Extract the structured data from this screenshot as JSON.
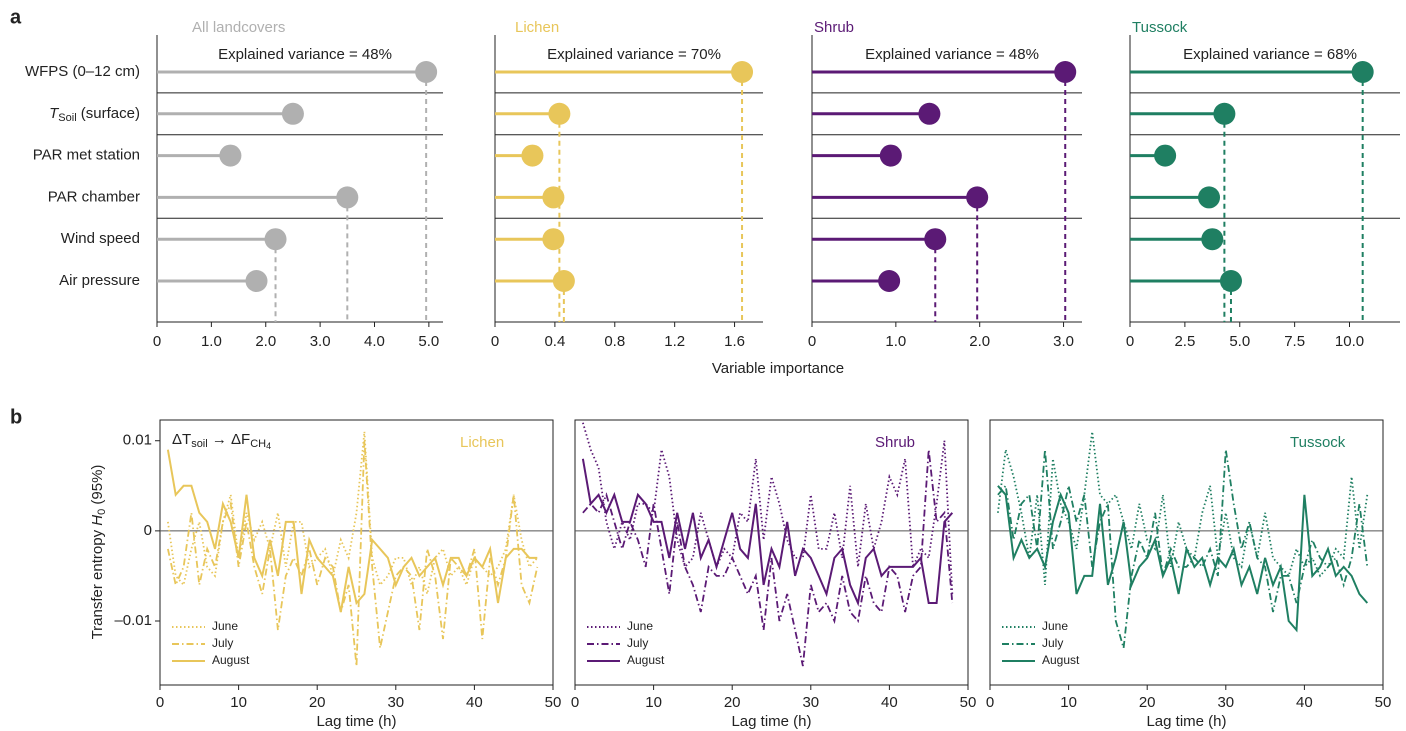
{
  "panel_labels": [
    "a",
    "b"
  ],
  "shared_xlabel": "Variable importance",
  "chart_data": [
    {
      "type": "lollipop",
      "title": "All landcovers",
      "annotation": "Explained variance = 48%",
      "color": "#b0b0b0",
      "categories": [
        "WFPS (0–12 cm)",
        {
          "text": "T",
          "sub": "Soil",
          "suffix": " (surface)"
        },
        "PAR met station",
        "PAR chamber",
        "Wind speed",
        "Air pressure"
      ],
      "values": [
        4.95,
        2.5,
        1.35,
        3.5,
        2.18,
        1.83
      ],
      "dashed": [
        true,
        false,
        false,
        true,
        true,
        false
      ],
      "group_breaks": [
        0,
        1,
        3
      ],
      "xlim": [
        0,
        5.26
      ],
      "xticks": [
        0,
        {
          "value": 1,
          "label": "1.0"
        },
        {
          "value": 2,
          "label": "2.0"
        },
        {
          "value": 3,
          "label": "3.0"
        },
        {
          "value": 4,
          "label": "4.0"
        },
        {
          "value": 5,
          "label": "5.0"
        }
      ]
    },
    {
      "type": "lollipop",
      "title": "Lichen",
      "annotation": "Explained variance = 70%",
      "color": "#e8c65a",
      "values": [
        1.65,
        0.43,
        0.25,
        0.39,
        0.39,
        0.46
      ],
      "dashed": [
        true,
        true,
        false,
        false,
        false,
        true
      ],
      "group_breaks": [
        0,
        1,
        3
      ],
      "xlim": [
        0,
        1.79
      ],
      "xticks": [
        0,
        0.4,
        0.8,
        1.2,
        1.6
      ]
    },
    {
      "type": "lollipop",
      "title": "Shrub",
      "annotation": "Explained variance = 48%",
      "color": "#5b1a75",
      "values": [
        3.02,
        1.4,
        0.94,
        1.97,
        1.47,
        0.92
      ],
      "dashed": [
        true,
        false,
        false,
        true,
        true,
        false
      ],
      "group_breaks": [
        0,
        1,
        3
      ],
      "xlim": [
        0,
        3.22
      ],
      "xticks": [
        0,
        {
          "value": 1,
          "label": "1.0"
        },
        {
          "value": 2,
          "label": "2.0"
        },
        {
          "value": 3,
          "label": "3.0"
        }
      ]
    },
    {
      "type": "lollipop",
      "title": "Tussock",
      "annotation": "Explained variance = 68%",
      "color": "#1f7f62",
      "values": [
        10.6,
        4.3,
        1.6,
        3.6,
        3.75,
        4.6
      ],
      "dashed": [
        true,
        true,
        false,
        false,
        false,
        true
      ],
      "group_breaks": [
        0,
        1,
        3
      ],
      "xlim": [
        0,
        12.3
      ],
      "xticks": [
        0,
        2.5,
        {
          "value": 5,
          "label": "5.0"
        },
        7.5,
        {
          "value": 10,
          "label": "10.0"
        }
      ]
    },
    {
      "type": "line",
      "title": "Lichen",
      "color": "#e8c65a",
      "xlabel": "Lag time (h)",
      "ylabel": {
        "text": "Transfer entropy ",
        "italic": "H",
        "sub": "0",
        "suffix": " (95%)"
      },
      "annotation": {
        "text": "ΔT",
        "sub": "soil",
        "mid": " → ΔF",
        "sub2": "CH",
        "sub3": "4"
      },
      "xlim": [
        0,
        50
      ],
      "xticks": [
        0,
        10,
        20,
        30,
        40,
        50
      ],
      "ylim": [
        -0.0171,
        0.0123
      ],
      "yticks": [
        {
          "value": -0.01,
          "label": "–0.01"
        },
        0,
        0.01
      ],
      "hline": 0,
      "x": [
        1,
        2,
        3,
        4,
        5,
        6,
        7,
        8,
        9,
        10,
        11,
        12,
        13,
        14,
        15,
        16,
        17,
        18,
        19,
        20,
        21,
        22,
        23,
        24,
        25,
        26,
        27,
        28,
        29,
        30,
        31,
        32,
        33,
        34,
        35,
        36,
        37,
        38,
        39,
        40,
        41,
        42,
        43,
        44,
        45,
        46,
        47,
        48
      ],
      "series": [
        {
          "name": "June",
          "style": "dotted",
          "values": [
            0.001,
            -0.005,
            -0.006,
            -0.002,
            0.001,
            -0.004,
            -0.005,
            0.001,
            0.004,
            -0.003,
            0.002,
            -0.001,
            0.001,
            -0.002,
            0.002,
            -0.004,
            0.001,
            0.001,
            -0.004,
            -0.003,
            -0.002,
            -0.005,
            -0.001,
            -0.003,
            0.002,
            0.011,
            -0.003,
            -0.006,
            -0.005,
            -0.003,
            -0.003,
            -0.006,
            -0.004,
            -0.007,
            -0.003,
            -0.002,
            -0.005,
            -0.004,
            -0.006,
            -0.003,
            -0.004,
            -0.005,
            -0.004,
            -0.002,
            0.004,
            -0.001,
            -0.004,
            -0.003
          ]
        },
        {
          "name": "July",
          "style": "dashdot",
          "values": [
            -0.002,
            -0.006,
            -0.004,
            0.002,
            -0.006,
            -0.002,
            -0.004,
            0.001,
            0.003,
            -0.004,
            0.001,
            -0.004,
            -0.007,
            -0.002,
            -0.011,
            -0.005,
            -0.003,
            -0.005,
            -0.002,
            -0.006,
            -0.003,
            -0.004,
            -0.009,
            -0.006,
            -0.015,
            0.01,
            -0.004,
            -0.013,
            -0.009,
            -0.005,
            -0.004,
            -0.005,
            -0.011,
            -0.002,
            -0.005,
            -0.012,
            -0.003,
            -0.004,
            -0.005,
            -0.002,
            -0.012,
            -0.003,
            -0.006,
            -0.003,
            0.004,
            -0.006,
            -0.008,
            -0.004
          ]
        },
        {
          "name": "August",
          "style": "solid",
          "values": [
            0.009,
            0.004,
            0.005,
            0.005,
            0.002,
            0.001,
            -0.002,
            0.003,
            0.001,
            -0.003,
            0.004,
            -0.003,
            -0.005,
            -0.001,
            -0.005,
            0.001,
            0.001,
            -0.007,
            -0.001,
            -0.003,
            -0.004,
            -0.005,
            -0.009,
            -0.004,
            -0.008,
            -0.007,
            -0.001,
            -0.002,
            -0.003,
            -0.006,
            -0.004,
            -0.003,
            -0.005,
            -0.004,
            -0.003,
            -0.006,
            -0.003,
            -0.003,
            -0.005,
            -0.003,
            -0.004,
            -0.002,
            -0.008,
            -0.003,
            -0.002,
            -0.002,
            -0.003,
            -0.003
          ]
        }
      ]
    },
    {
      "type": "line",
      "title": "Shrub",
      "color": "#5b1a75",
      "xlabel": "Lag time (h)",
      "xlim": [
        0,
        50
      ],
      "xticks": [
        0,
        10,
        20,
        30,
        40,
        50
      ],
      "ylim": [
        -0.0171,
        0.0123
      ],
      "hline": 0,
      "x": [
        1,
        2,
        3,
        4,
        5,
        6,
        7,
        8,
        9,
        10,
        11,
        12,
        13,
        14,
        15,
        16,
        17,
        18,
        19,
        20,
        21,
        22,
        23,
        24,
        25,
        26,
        27,
        28,
        29,
        30,
        31,
        32,
        33,
        34,
        35,
        36,
        37,
        38,
        39,
        40,
        41,
        42,
        43,
        44,
        45,
        46,
        47,
        48
      ],
      "series": [
        {
          "name": "June",
          "style": "dotted",
          "values": [
            0.012,
            0.009,
            0.007,
            0.001,
            -0.002,
            0.001,
            -0.001,
            0.003,
            0.003,
            0.002,
            0.009,
            0.006,
            -0.001,
            -0.004,
            -0.003,
            0.002,
            -0.001,
            -0.004,
            -0.002,
            -0.003,
            0.002,
            0.001,
            0.008,
            -0.001,
            0.006,
            0.003,
            -0.001,
            -0.003,
            -0.003,
            0.004,
            -0.002,
            -0.002,
            0.002,
            -0.003,
            0.005,
            -0.004,
            0.003,
            -0.002,
            0.001,
            0.006,
            0.004,
            0.008,
            -0.004,
            -0.002,
            -0.003,
            0.003,
            0.01,
            -0.007
          ]
        },
        {
          "name": "July",
          "style": "dashdot",
          "values": [
            0.002,
            0.003,
            0.002,
            0.004,
            0.001,
            -0.002,
            0.001,
            -0.001,
            -0.004,
            0.003,
            -0.002,
            -0.007,
            0.001,
            -0.004,
            -0.006,
            -0.009,
            -0.004,
            -0.005,
            -0.005,
            -0.003,
            -0.005,
            -0.007,
            -0.005,
            -0.011,
            -0.003,
            -0.01,
            -0.007,
            -0.011,
            -0.015,
            -0.006,
            -0.009,
            -0.008,
            -0.01,
            -0.005,
            -0.009,
            -0.01,
            -0.005,
            -0.008,
            -0.009,
            -0.004,
            -0.005,
            -0.009,
            -0.005,
            -0.004,
            0.009,
            0.001,
            0.002,
            -0.008
          ]
        },
        {
          "name": "August",
          "style": "solid",
          "values": [
            0.008,
            0.003,
            0.004,
            0.002,
            0.004,
            0.001,
            0.001,
            0.004,
            0.003,
            0.001,
            0.001,
            -0.003,
            0.002,
            -0.002,
            0.002,
            -0.003,
            -0.001,
            -0.004,
            -0.001,
            0.002,
            -0.002,
            -0.003,
            0.003,
            -0.006,
            -0.002,
            -0.004,
            0.001,
            -0.005,
            -0.002,
            -0.003,
            -0.005,
            -0.007,
            -0.003,
            -0.002,
            -0.006,
            -0.008,
            -0.003,
            -0.002,
            -0.005,
            -0.004,
            -0.004,
            -0.004,
            -0.004,
            -0.003,
            -0.008,
            -0.008,
            0.001,
            0.002
          ]
        }
      ]
    },
    {
      "type": "line",
      "title": "Tussock",
      "color": "#1f7f62",
      "xlabel": "Lag time (h)",
      "xlim": [
        0,
        50
      ],
      "xticks": [
        0,
        10,
        20,
        30,
        40,
        50
      ],
      "ylim": [
        -0.0171,
        0.0123
      ],
      "hline": 0,
      "x": [
        1,
        2,
        3,
        4,
        5,
        6,
        7,
        8,
        9,
        10,
        11,
        12,
        13,
        14,
        15,
        16,
        17,
        18,
        19,
        20,
        21,
        22,
        23,
        24,
        25,
        26,
        27,
        28,
        29,
        30,
        31,
        32,
        33,
        34,
        35,
        36,
        37,
        38,
        39,
        40,
        41,
        42,
        43,
        44,
        45,
        46,
        47,
        48
      ],
      "series": [
        {
          "name": "June",
          "style": "dotted",
          "values": [
            0.002,
            0.009,
            0.006,
            0.002,
            -0.003,
            0.004,
            -0.006,
            0.008,
            0.003,
            0.001,
            -0.002,
            0.004,
            0.011,
            0.004,
            0.003,
            0.004,
            0.001,
            -0.002,
            0.003,
            -0.001,
            -0.002,
            0.004,
            -0.004,
            0.001,
            -0.002,
            -0.003,
            0.002,
            0.005,
            -0.003,
            0.002,
            -0.003,
            -0.004,
            0.001,
            -0.003,
            0.002,
            -0.003,
            -0.004,
            -0.005,
            -0.002,
            -0.004,
            -0.003,
            -0.005,
            -0.004,
            -0.002,
            -0.003,
            0.006,
            -0.002,
            0.004
          ]
        },
        {
          "name": "July",
          "style": "dashdot",
          "values": [
            0.004,
            0.005,
            -0.001,
            0.003,
            0.004,
            -0.002,
            0.009,
            -0.002,
            0.001,
            0.005,
            0.001,
            0.004,
            -0.004,
            0.001,
            0.003,
            -0.01,
            -0.013,
            -0.005,
            -0.001,
            -0.003,
            0.002,
            -0.005,
            -0.002,
            -0.004,
            -0.004,
            -0.003,
            -0.004,
            -0.002,
            -0.005,
            0.009,
            0.003,
            -0.002,
            0.001,
            -0.003,
            -0.004,
            -0.009,
            -0.005,
            -0.005,
            -0.008,
            -0.004,
            -0.001,
            -0.003,
            -0.004,
            -0.003,
            -0.006,
            -0.003,
            0.003,
            -0.004
          ]
        },
        {
          "name": "August",
          "style": "solid",
          "values": [
            0.005,
            0.004,
            -0.003,
            -0.001,
            -0.003,
            -0.002,
            -0.004,
            0.001,
            0.004,
            0.002,
            -0.007,
            -0.005,
            -0.005,
            0.003,
            -0.006,
            -0.003,
            0.001,
            -0.006,
            -0.004,
            -0.003,
            -0.001,
            -0.005,
            -0.003,
            -0.007,
            -0.002,
            -0.004,
            -0.003,
            -0.006,
            -0.003,
            -0.004,
            -0.002,
            -0.006,
            -0.004,
            -0.007,
            -0.003,
            -0.006,
            -0.004,
            -0.01,
            -0.011,
            0.004,
            -0.005,
            -0.004,
            -0.002,
            -0.005,
            -0.004,
            -0.005,
            -0.007,
            -0.008
          ]
        }
      ]
    }
  ]
}
